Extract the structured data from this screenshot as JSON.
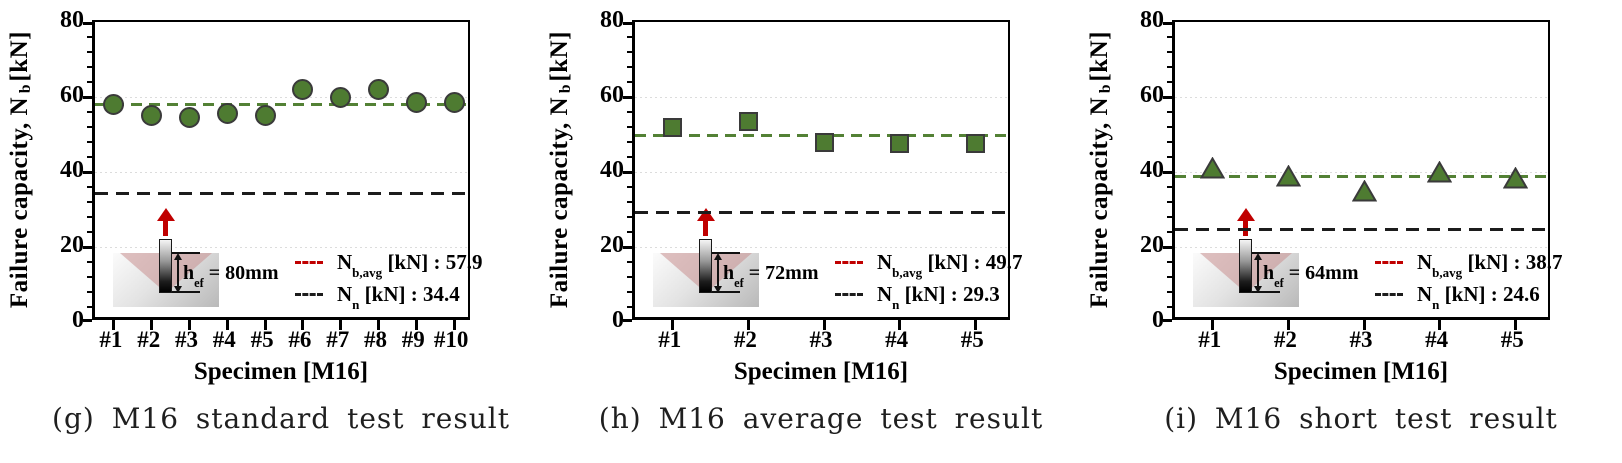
{
  "figure": {
    "ylabel": {
      "pre": "Failure capacity, N",
      "sub": "b",
      "post": " [kN]"
    },
    "xlabel": "Specimen [M16]",
    "ytick_labels": [
      80,
      60,
      40,
      20,
      0
    ]
  },
  "colors": {
    "marker_fill": "#4e7b31",
    "marker_stroke": "#3a3a3a",
    "avg_line_green": "#538135",
    "legend_avg_marker_red": "#c00000",
    "nn_line_black": "#1c1c1c",
    "load_arrow_red": "#c00000",
    "cone_pink": "#c98f8f",
    "gridline_gray": "#dcdcdc",
    "axis_black": "#000000"
  },
  "charts": [
    {
      "caption": "(g) M16 standard test result",
      "hef": {
        "main": "h",
        "sub": "ef",
        "rest": " = 80mm"
      },
      "legend": {
        "avg": {
          "main": "N",
          "sub": "b,avg",
          "rest": " [kN] : 57.9"
        },
        "nn": {
          "main": "N",
          "sub": "n",
          "rest": " [kN] : 34.4"
        }
      }
    },
    {
      "caption": "(h) M16 average test result",
      "hef": {
        "main": "h",
        "sub": "ef",
        "rest": " = 72mm"
      },
      "legend": {
        "avg": {
          "main": "N",
          "sub": "b,avg",
          "rest": " [kN] : 49.7"
        },
        "nn": {
          "main": "N",
          "sub": "n",
          "rest": " [kN] : 29.3"
        }
      }
    },
    {
      "caption": "(i) M16 short test result",
      "hef": {
        "main": "h",
        "sub": "ef",
        "rest": " = 64mm"
      },
      "legend": {
        "avg": {
          "main": "N",
          "sub": "b,avg",
          "rest": " [kN] : 38.7"
        },
        "nn": {
          "main": "N",
          "sub": "n",
          "rest": " [kN] : 24.6"
        }
      }
    }
  ],
  "chart_data": [
    {
      "type": "scatter",
      "marker": "circle",
      "title": "(g) M16 standard test result",
      "categories": [
        "#1",
        "#2",
        "#3",
        "#4",
        "#5",
        "#6",
        "#7",
        "#8",
        "#9",
        "#10"
      ],
      "values": [
        58,
        55,
        54.5,
        55.5,
        55,
        62,
        60,
        62,
        58.5,
        58.5
      ],
      "avg_line": 57.9,
      "nominal_line": 34.4,
      "hef_mm": 80,
      "ylabel": "Failure capacity, N_b [kN]",
      "xlabel": "Specimen [M16]",
      "ylim": [
        0,
        80
      ],
      "ytick_major_step": 20,
      "ytick_minor_step": 4,
      "grid": "horizontal-dotted at 20/40/60",
      "legend_position": "lower-right",
      "legend": [
        "N_b,avg [kN] : 57.9",
        "N_n [kN] : 34.4"
      ]
    },
    {
      "type": "scatter",
      "marker": "square",
      "title": "(h) M16 average test result",
      "categories": [
        "#1",
        "#2",
        "#3",
        "#4",
        "#5"
      ],
      "values": [
        52,
        53.5,
        48,
        47.5,
        47.5
      ],
      "avg_line": 49.7,
      "nominal_line": 29.3,
      "hef_mm": 72,
      "ylabel": "Failure capacity, N_b [kN]",
      "xlabel": "Specimen [M16]",
      "ylim": [
        0,
        80
      ],
      "ytick_major_step": 20,
      "ytick_minor_step": 4,
      "grid": "horizontal-dotted at 20/40/60",
      "legend_position": "lower-right",
      "legend": [
        "N_b,avg [kN] : 49.7",
        "N_n [kN] : 29.3"
      ]
    },
    {
      "type": "scatter",
      "marker": "triangle",
      "title": "(i) M16 short test result",
      "categories": [
        "#1",
        "#2",
        "#3",
        "#4",
        "#5"
      ],
      "values": [
        41,
        39,
        35,
        40,
        38.5
      ],
      "avg_line": 38.7,
      "nominal_line": 24.6,
      "hef_mm": 64,
      "ylabel": "Failure capacity, N_b [kN]",
      "xlabel": "Specimen [M16]",
      "ylim": [
        0,
        80
      ],
      "ytick_major_step": 20,
      "ytick_minor_step": 4,
      "grid": "horizontal-dotted at 20/40/60",
      "legend_position": "lower-right",
      "legend": [
        "N_b,avg [kN] : 38.7",
        "N_n [kN] : 24.6"
      ]
    }
  ]
}
